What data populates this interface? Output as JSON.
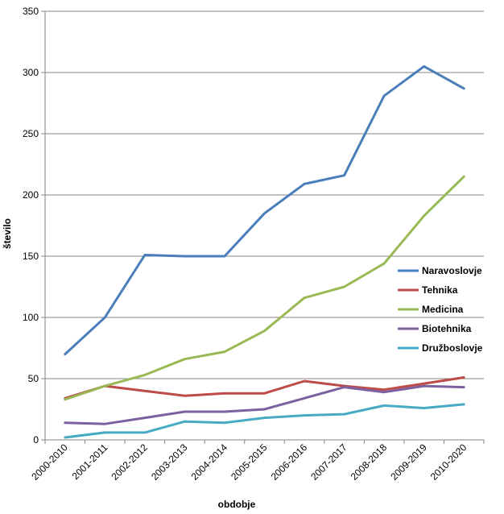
{
  "chart_data": {
    "type": "line",
    "title": "",
    "xlabel": "obdobje",
    "ylabel": "število",
    "ylim": [
      0,
      350
    ],
    "yticks": [
      0,
      50,
      100,
      150,
      200,
      250,
      300,
      350
    ],
    "grid": "horizontal",
    "legend_position": "right",
    "categories": [
      "2000-2010",
      "2001-2011",
      "2002-2012",
      "2003-2013",
      "2004-2014",
      "2005-2015",
      "2006-2016",
      "2007-2017",
      "2008-2018",
      "2009-2019",
      "2010-2020"
    ],
    "series": [
      {
        "name": "Naravoslovje",
        "color": "#4a7ebb",
        "values": [
          70,
          100,
          151,
          150,
          150,
          185,
          209,
          216,
          281,
          305,
          287
        ]
      },
      {
        "name": "Tehnika",
        "color": "#be4b48",
        "values": [
          34,
          44,
          40,
          36,
          38,
          38,
          48,
          44,
          41,
          46,
          51
        ]
      },
      {
        "name": "Medicina",
        "color": "#98b954",
        "values": [
          33,
          44,
          53,
          66,
          72,
          89,
          116,
          125,
          144,
          183,
          215
        ]
      },
      {
        "name": "Biotehnika",
        "color": "#7d60a0",
        "values": [
          14,
          13,
          18,
          23,
          23,
          25,
          34,
          43,
          39,
          44,
          43
        ]
      },
      {
        "name": "Družboslovje",
        "color": "#46aac5",
        "values": [
          2,
          6,
          6,
          15,
          14,
          18,
          20,
          21,
          28,
          26,
          29
        ]
      }
    ]
  }
}
